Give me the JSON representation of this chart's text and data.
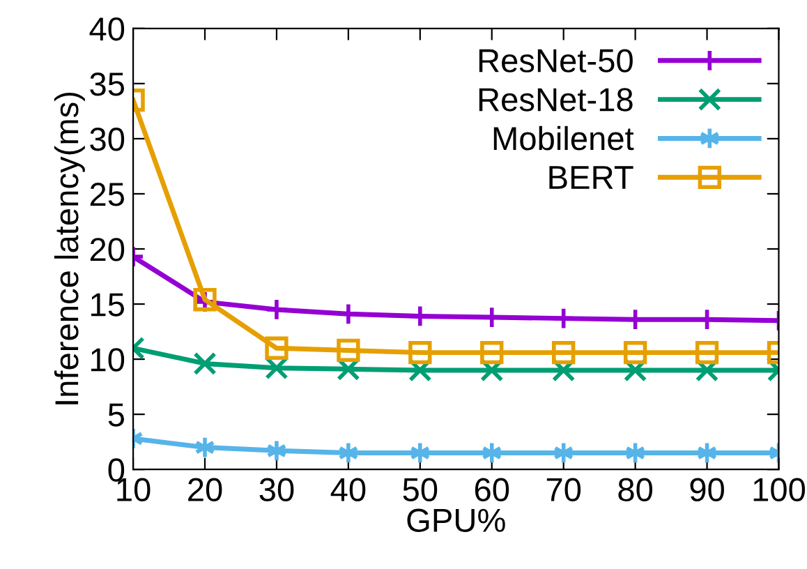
{
  "chart_data": {
    "type": "line",
    "xlabel": "GPU%",
    "ylabel": "Inference latency(ms)",
    "x": [
      10,
      20,
      30,
      40,
      50,
      60,
      70,
      80,
      90,
      100
    ],
    "series": [
      {
        "name": "ResNet-50",
        "color": "#9400d3",
        "marker": "plus",
        "values": [
          19.3,
          15.2,
          14.5,
          14.1,
          13.9,
          13.8,
          13.7,
          13.6,
          13.6,
          13.5
        ]
      },
      {
        "name": "ResNet-18",
        "color": "#009e73",
        "marker": "x",
        "values": [
          11.0,
          9.6,
          9.2,
          9.1,
          9.0,
          9.0,
          9.0,
          9.0,
          9.0,
          9.0
        ]
      },
      {
        "name": "Mobilenet",
        "color": "#56b4e9",
        "marker": "cross",
        "values": [
          2.8,
          2.0,
          1.7,
          1.5,
          1.5,
          1.5,
          1.5,
          1.5,
          1.5,
          1.5
        ]
      },
      {
        "name": "BERT",
        "color": "#e69f00",
        "marker": "square",
        "values": [
          33.5,
          15.4,
          11.0,
          10.8,
          10.6,
          10.6,
          10.6,
          10.6,
          10.6,
          10.6
        ]
      }
    ],
    "xlim": [
      10,
      100
    ],
    "xticks": [
      10,
      20,
      30,
      40,
      50,
      60,
      70,
      80,
      90,
      100
    ],
    "ylim": [
      0,
      40
    ],
    "yticks": [
      0,
      5,
      10,
      15,
      20,
      25,
      30,
      35,
      40
    ],
    "legend": "top right",
    "line_style": "solid"
  }
}
